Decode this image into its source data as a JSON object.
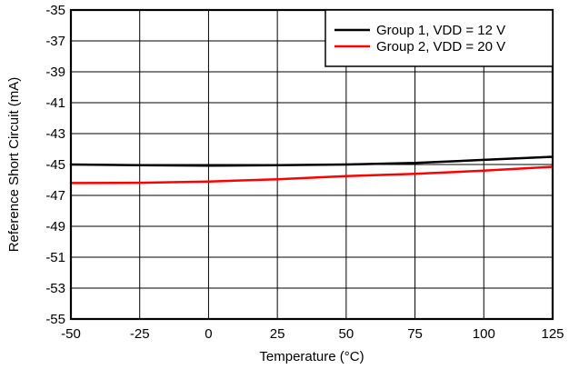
{
  "chart_data": {
    "type": "line",
    "title": "",
    "xlabel": "Temperature (°C)",
    "ylabel": "Reference Short Circuit (mA)",
    "xlim": [
      -50,
      125
    ],
    "ylim": [
      -55,
      -35
    ],
    "xticks": [
      -50,
      -25,
      0,
      25,
      50,
      75,
      100,
      125
    ],
    "yticks": [
      -35,
      -37,
      -39,
      -41,
      -43,
      -45,
      -47,
      -49,
      -51,
      -53,
      -55
    ],
    "grid": true,
    "legend_position": "top-right",
    "series": [
      {
        "name": "Group 1, VDD = 12 V",
        "color": "#000000",
        "x": [
          -50,
          -25,
          0,
          25,
          50,
          75,
          100,
          125
        ],
        "y": [
          -45.0,
          -45.05,
          -45.07,
          -45.05,
          -45.0,
          -44.9,
          -44.7,
          -44.5
        ]
      },
      {
        "name": "Group 2, VDD = 20 V",
        "color": "#ff0000",
        "x": [
          -50,
          -25,
          0,
          25,
          50,
          75,
          100,
          125
        ],
        "y": [
          -46.2,
          -46.18,
          -46.1,
          -45.95,
          -45.75,
          -45.6,
          -45.4,
          -45.15
        ]
      }
    ]
  }
}
